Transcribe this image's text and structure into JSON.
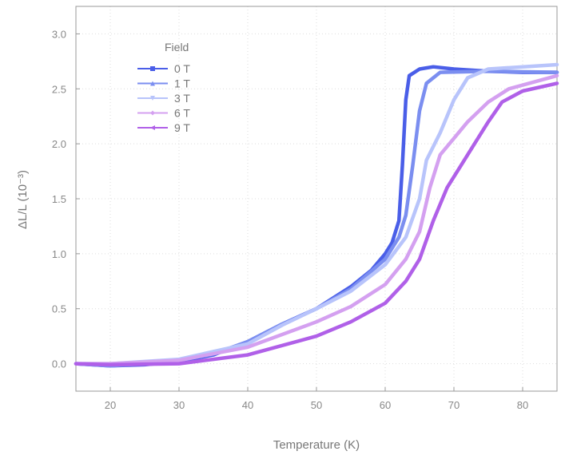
{
  "chart_data": {
    "type": "line",
    "xlabel": "Temperature (K)",
    "ylabel": "ΔL/L (10⁻³)",
    "xlim": [
      15,
      85
    ],
    "ylim": [
      -0.25,
      3.25
    ],
    "xticks": [
      "20",
      "30",
      "40",
      "50",
      "60",
      "70",
      "80"
    ],
    "xtick_values": [
      20,
      30,
      40,
      50,
      60,
      70,
      80
    ],
    "yticks": [
      "0.0",
      "0.5",
      "1.0",
      "1.5",
      "2.0",
      "2.5",
      "3.0"
    ],
    "ytick_values": [
      0,
      0.5,
      1,
      1.5,
      2,
      2.5,
      3
    ],
    "grid": true,
    "legend": {
      "title": "Field",
      "placement": "top-left"
    },
    "series": [
      {
        "name": "0 T",
        "color": "#4a5ee8",
        "marker": "square",
        "x": [
          15,
          20,
          25,
          30,
          35,
          40,
          45,
          50,
          55,
          58,
          60,
          61,
          62,
          62.5,
          63,
          63.5,
          65,
          67,
          70,
          75,
          80,
          85
        ],
        "y": [
          0,
          -0.02,
          -0.01,
          0.02,
          0.08,
          0.2,
          0.36,
          0.5,
          0.7,
          0.85,
          1.0,
          1.1,
          1.3,
          1.8,
          2.4,
          2.62,
          2.68,
          2.7,
          2.68,
          2.66,
          2.65,
          2.65
        ]
      },
      {
        "name": "1 T",
        "color": "#7b8ef0",
        "marker": "triangle-up",
        "x": [
          15,
          20,
          25,
          30,
          35,
          40,
          45,
          50,
          55,
          60,
          62,
          63,
          64,
          65,
          66,
          68,
          75,
          85
        ],
        "y": [
          0,
          -0.02,
          0,
          0.03,
          0.09,
          0.2,
          0.36,
          0.5,
          0.68,
          0.95,
          1.15,
          1.35,
          1.8,
          2.3,
          2.55,
          2.65,
          2.66,
          2.65
        ]
      },
      {
        "name": "3 T",
        "color": "#b8c4fb",
        "marker": "triangle-down",
        "x": [
          15,
          20,
          30,
          40,
          45,
          50,
          55,
          60,
          63,
          65,
          66,
          68,
          70,
          72,
          75,
          85
        ],
        "y": [
          0,
          0,
          0.04,
          0.18,
          0.35,
          0.5,
          0.66,
          0.9,
          1.15,
          1.5,
          1.85,
          2.1,
          2.4,
          2.6,
          2.68,
          2.72
        ]
      },
      {
        "name": "6 T",
        "color": "#d4a0f0",
        "marker": "diamond",
        "x": [
          15,
          20,
          30,
          40,
          50,
          55,
          60,
          63,
          65,
          66.5,
          68,
          70,
          72,
          75,
          78,
          85
        ],
        "y": [
          0,
          0,
          0.03,
          0.15,
          0.38,
          0.52,
          0.72,
          0.95,
          1.2,
          1.6,
          1.9,
          2.05,
          2.2,
          2.38,
          2.5,
          2.62
        ]
      },
      {
        "name": "9 T",
        "color": "#b060e8",
        "marker": "triangle-left",
        "x": [
          15,
          20,
          30,
          40,
          50,
          55,
          60,
          63,
          65,
          67,
          69,
          71,
          73,
          75,
          77,
          80,
          85
        ],
        "y": [
          0,
          -0.01,
          0,
          0.08,
          0.25,
          0.38,
          0.55,
          0.75,
          0.95,
          1.3,
          1.6,
          1.8,
          2.0,
          2.2,
          2.38,
          2.48,
          2.55
        ]
      }
    ]
  }
}
